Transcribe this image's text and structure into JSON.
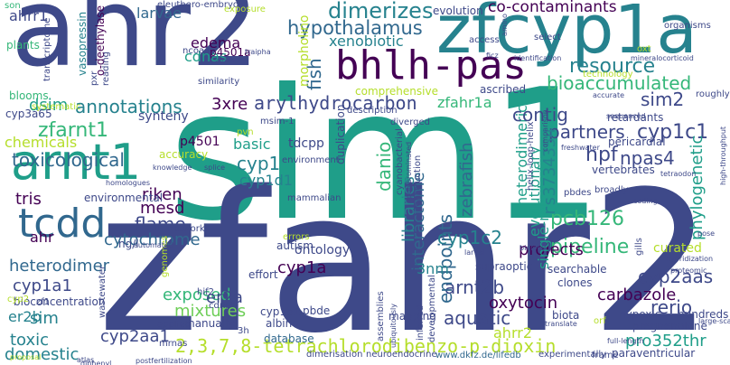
{
  "palette": {
    "background": "#ffffff",
    "indigo": "#440154",
    "navy": "#3e4989",
    "blue": "#31688e",
    "teal": "#26828e",
    "green": "#1f9e89",
    "mint": "#35b779",
    "lime": "#6ece58",
    "yellow": "#b5de2b",
    "gold": "#c8d23a"
  },
  "words": [
    {
      "text": "sim1",
      "color": "green"
    },
    {
      "text": "zfahr2",
      "color": "navy"
    },
    {
      "text": "ahr2",
      "color": "navy"
    },
    {
      "text": "zfcyp1a",
      "color": "teal"
    },
    {
      "text": "bhlh-pas",
      "color": "indigo"
    },
    {
      "text": "tcdd",
      "color": "blue"
    },
    {
      "text": "arnt1",
      "color": "green"
    },
    {
      "text": "hypothalamus",
      "color": "blue"
    },
    {
      "text": "toxicological",
      "color": "blue"
    },
    {
      "text": "annotations",
      "color": "teal"
    },
    {
      "text": "resource",
      "color": "teal"
    },
    {
      "text": "bioaccumulated",
      "color": "mint"
    },
    {
      "text": "dimerizes",
      "color": "teal"
    },
    {
      "text": "co-contaminants",
      "color": "indigo"
    },
    {
      "text": "zfarnt1",
      "color": "mint"
    },
    {
      "text": "2,3,7,8-tetrachlorodibenzo-p-dioxin",
      "color": "yellow"
    },
    {
      "text": "pcb126",
      "color": "mint"
    },
    {
      "text": "pipeline",
      "color": "mint"
    },
    {
      "text": "cyp1c1",
      "color": "navy"
    },
    {
      "text": "arylhydrocarbon",
      "color": "navy"
    },
    {
      "text": "partners",
      "color": "navy"
    },
    {
      "text": "projects",
      "color": "indigo"
    },
    {
      "text": "cyp1a",
      "color": "indigo"
    },
    {
      "text": "cyp1c2",
      "color": "teal"
    },
    {
      "text": "cytochrome",
      "color": "blue"
    },
    {
      "text": "heterodimer",
      "color": "blue"
    },
    {
      "text": "flame",
      "color": "navy"
    },
    {
      "text": "aquatic",
      "color": "navy"
    },
    {
      "text": "arnt2b",
      "color": "navy"
    },
    {
      "text": "oxytocin",
      "color": "indigo"
    },
    {
      "text": "cyp2aas",
      "color": "navy"
    },
    {
      "text": "rerio",
      "color": "navy"
    },
    {
      "text": "carbazole",
      "color": "indigo"
    },
    {
      "text": "mixtures",
      "color": "lime"
    },
    {
      "text": "exposed",
      "color": "mint"
    },
    {
      "text": "endpoints",
      "color": "blue"
    },
    {
      "text": "libraries",
      "color": "teal"
    },
    {
      "text": "interactome",
      "color": "blue"
    },
    {
      "text": "zebrafish",
      "color": "blue"
    },
    {
      "text": "danio",
      "color": "mint"
    },
    {
      "text": "evolutionary",
      "color": "green"
    },
    {
      "text": "heterodimeric",
      "color": "green"
    },
    {
      "text": "single-minded",
      "color": "green"
    },
    {
      "text": "rs3734354",
      "color": "teal"
    },
    {
      "text": "phylogenetic",
      "color": "green"
    },
    {
      "text": "hpf",
      "color": "navy"
    },
    {
      "text": "npas4",
      "color": "navy"
    },
    {
      "text": "sim2",
      "color": "navy"
    },
    {
      "text": "contig",
      "color": "navy"
    },
    {
      "text": "xenobiotic",
      "color": "teal"
    },
    {
      "text": "fish",
      "color": "blue"
    },
    {
      "text": "larvae",
      "color": "blue"
    },
    {
      "text": "edema",
      "color": "indigo"
    },
    {
      "text": "cdnas",
      "color": "green"
    },
    {
      "text": "3xre",
      "color": "indigo"
    },
    {
      "text": "ahrr1",
      "color": "navy"
    },
    {
      "text": "dsim",
      "color": "green"
    },
    {
      "text": "chemicals",
      "color": "yellow"
    },
    {
      "text": "tris",
      "color": "indigo"
    },
    {
      "text": "riken",
      "color": "indigo"
    },
    {
      "text": "mesd",
      "color": "indigo"
    },
    {
      "text": "cyp1",
      "color": "teal"
    },
    {
      "text": "cyp1d1",
      "color": "teal"
    },
    {
      "text": "basic",
      "color": "green"
    },
    {
      "text": "tdcpp",
      "color": "navy"
    },
    {
      "text": "p4501",
      "color": "indigo"
    },
    {
      "text": "zfahr1a",
      "color": "mint"
    },
    {
      "text": "ahr",
      "color": "indigo"
    },
    {
      "text": "cyp1a1",
      "color": "navy"
    },
    {
      "text": "sim",
      "color": "teal"
    },
    {
      "text": "er2b",
      "color": "teal"
    },
    {
      "text": "toxic",
      "color": "teal"
    },
    {
      "text": "domestic",
      "color": "teal"
    },
    {
      "text": "cyp2aa1",
      "color": "navy"
    },
    {
      "text": "er2a",
      "color": "navy"
    },
    {
      "text": "3nm",
      "color": "teal"
    },
    {
      "text": "ahrr2",
      "color": "yellow"
    },
    {
      "text": "pro352thr",
      "color": "green"
    },
    {
      "text": "morpholino",
      "color": "yellow"
    },
    {
      "text": "systematic",
      "color": "yellow"
    },
    {
      "text": "synteny",
      "color": "navy"
    },
    {
      "text": "comprehensive",
      "color": "yellow"
    },
    {
      "text": "ascribed",
      "color": "navy"
    },
    {
      "text": "curated",
      "color": "yellow"
    },
    {
      "text": "retardants",
      "color": "navy"
    },
    {
      "text": "pericardial",
      "color": "navy"
    },
    {
      "text": "vertebrates",
      "color": "navy"
    },
    {
      "text": "duplication",
      "color": "navy"
    },
    {
      "text": "environmental",
      "color": "navy"
    },
    {
      "text": "accuracy",
      "color": "yellow"
    },
    {
      "text": "pvn",
      "color": "yellow"
    },
    {
      "text": "msim-1",
      "color": "navy"
    },
    {
      "text": "ontology",
      "color": "navy"
    },
    {
      "text": "autism",
      "color": "navy"
    },
    {
      "text": "effort",
      "color": "navy"
    },
    {
      "text": "cyp1b1",
      "color": "navy"
    },
    {
      "text": "pbde",
      "color": "navy"
    },
    {
      "text": "albino",
      "color": "navy"
    },
    {
      "text": "manually",
      "color": "navy"
    },
    {
      "text": "database",
      "color": "blue"
    },
    {
      "text": "mapping",
      "color": "navy"
    },
    {
      "text": "dimerisation",
      "color": "navy"
    },
    {
      "text": "neuroendocrine",
      "color": "navy"
    },
    {
      "text": "www.dkfz.de/lifedb",
      "color": "blue"
    },
    {
      "text": "experimentally",
      "color": "navy"
    },
    {
      "text": "paraventricular",
      "color": "navy"
    },
    {
      "text": "hundreds",
      "color": "navy"
    },
    {
      "text": "biota",
      "color": "navy"
    },
    {
      "text": "hypoxic",
      "color": "navy"
    },
    {
      "text": "pregnenolone",
      "color": "navy"
    },
    {
      "text": "searchable",
      "color": "navy"
    },
    {
      "text": "clones",
      "color": "navy"
    },
    {
      "text": "supraoptic",
      "color": "navy"
    },
    {
      "text": "vasopressin",
      "color": "teal"
    },
    {
      "text": "o-deethylase",
      "color": "indigo"
    },
    {
      "text": "transcriptome",
      "color": "navy"
    },
    {
      "text": "reading",
      "color": "navy"
    },
    {
      "text": "pxr",
      "color": "navy"
    },
    {
      "text": "ncoa3",
      "color": "navy"
    },
    {
      "text": "p4501a",
      "color": "indigo"
    },
    {
      "text": "plants",
      "color": "mint"
    },
    {
      "text": "blooms",
      "color": "mint"
    },
    {
      "text": "son",
      "color": "mint"
    },
    {
      "text": "cyp3a65",
      "color": "navy"
    },
    {
      "text": "homologues",
      "color": "navy"
    },
    {
      "text": "evolution",
      "color": "navy"
    },
    {
      "text": "access",
      "color": "navy"
    },
    {
      "text": "select",
      "color": "navy"
    },
    {
      "text": "organisms",
      "color": "navy"
    },
    {
      "text": "oxt",
      "color": "yellow"
    },
    {
      "text": "technology",
      "color": "yellow"
    },
    {
      "text": "roughly",
      "color": "navy"
    },
    {
      "text": "sequenced",
      "color": "navy"
    },
    {
      "text": "cyanobacterial",
      "color": "navy"
    },
    {
      "text": "polybrominated",
      "color": "navy"
    },
    {
      "text": "construction",
      "color": "navy"
    },
    {
      "text": "pbdes",
      "color": "navy"
    },
    {
      "text": "coding",
      "color": "navy"
    },
    {
      "text": "broadly",
      "color": "navy"
    },
    {
      "text": "helix-loop-helix",
      "color": "navy"
    },
    {
      "text": "diverged",
      "color": "navy"
    },
    {
      "text": "description",
      "color": "navy"
    },
    {
      "text": "splice",
      "color": "navy"
    },
    {
      "text": "mammalian",
      "color": "navy"
    },
    {
      "text": "knowledge",
      "color": "navy"
    },
    {
      "text": "networks",
      "color": "navy"
    },
    {
      "text": "hif2",
      "color": "navy"
    },
    {
      "text": "cdna",
      "color": "navy"
    },
    {
      "text": "genomes",
      "color": "yellow"
    },
    {
      "text": "bioconcentration",
      "color": "navy"
    },
    {
      "text": "wastewater",
      "color": "navy"
    },
    {
      "text": "applied",
      "color": "navy"
    },
    {
      "text": "mrnas",
      "color": "navy"
    },
    {
      "text": "ng/l",
      "color": "navy"
    },
    {
      "text": "zf1",
      "color": "navy"
    },
    {
      "text": "cyp2",
      "color": "yellow"
    },
    {
      "text": "full-length",
      "color": "navy"
    },
    {
      "text": "large-scale",
      "color": "navy"
    },
    {
      "text": "orf",
      "color": "yellow"
    },
    {
      "text": "frame",
      "color": "navy"
    },
    {
      "text": "inferred",
      "color": "navy"
    },
    {
      "text": "developmental",
      "color": "navy"
    },
    {
      "text": "assemblies",
      "color": "navy"
    },
    {
      "text": "translate",
      "color": "navy"
    },
    {
      "text": "ubiquitously",
      "color": "navy"
    },
    {
      "text": "high-throughput",
      "color": "navy"
    },
    {
      "text": "pose",
      "color": "navy"
    },
    {
      "text": "proteomic",
      "color": "navy"
    },
    {
      "text": "hybridization",
      "color": "navy"
    },
    {
      "text": "gills",
      "color": "navy"
    },
    {
      "text": "tetraodon",
      "color": "navy"
    },
    {
      "text": "freshwater",
      "color": "navy"
    },
    {
      "text": "identification",
      "color": "navy"
    },
    {
      "text": "ficz",
      "color": "navy"
    },
    {
      "text": "amino",
      "color": "navy"
    },
    {
      "text": "mineralocorticoid",
      "color": "navy"
    },
    {
      "text": "accurate",
      "color": "navy"
    },
    {
      "text": "comparison",
      "color": "navy"
    },
    {
      "text": "errors",
      "color": "yellow"
    },
    {
      "text": "environment",
      "color": "navy"
    },
    {
      "text": "eleuthero-embryos",
      "color": "navy"
    },
    {
      "text": "exposure",
      "color": "yellow"
    },
    {
      "text": "traipha",
      "color": "navy"
    },
    {
      "text": "draft",
      "color": "navy"
    },
    {
      "text": "similarity",
      "color": "navy"
    },
    {
      "text": "atlas",
      "color": "navy"
    },
    {
      "text": "proposal",
      "color": "yellow"
    },
    {
      "text": "diphenyl",
      "color": "navy"
    },
    {
      "text": "postfertilization",
      "color": "navy"
    },
    {
      "text": "biology",
      "color": "navy"
    },
    {
      "text": "larval",
      "color": "navy"
    },
    {
      "text": "automated",
      "color": "navy"
    },
    {
      "text": "3h",
      "color": "navy"
    }
  ]
}
